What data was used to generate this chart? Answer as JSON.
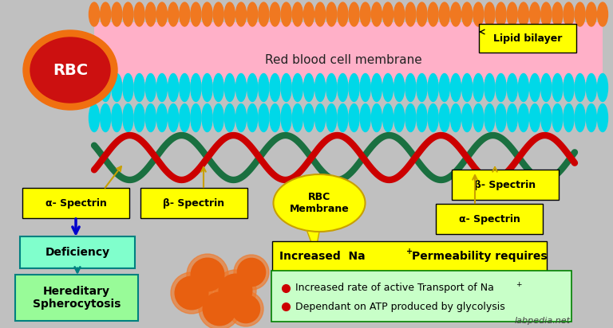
{
  "bg_color": "#c0c0c0",
  "fig_width": 7.68,
  "fig_height": 4.12,
  "orange_color": "#f07820",
  "pink_color": "#ffb0c8",
  "cyan_color": "#00d8e8",
  "rbc_outer_color": "#f07010",
  "rbc_inner_color": "#cc1010",
  "rbc_text": "RBC",
  "membrane_label": "Red blood cell membrane",
  "lipid_label": "Lipid bilayer",
  "alpha_spectrin_left": "α- Spectrin",
  "beta_spectrin_left": "β- Spectrin",
  "beta_spectrin_right": "β- Spectrin",
  "alpha_spectrin_right": "α- Spectrin",
  "rbc_membrane_label": "RBC\nMembrane",
  "deficiency_label": "Deficiency",
  "hereditary_label": "Hereditary\nSpherocytosis",
  "bullet1": "Increased rate of active Transport of Na",
  "bullet2": "Dependant on ATP produced by glycolysis",
  "na_text1": "Increased  Na",
  "na_text2": "Permeability requires",
  "labpedia": "labpedia.net",
  "yellow_color": "#ffff00",
  "green_box_color": "#98fb98",
  "cyan_box_color": "#80ffcc",
  "spectrin_green": "#1a7040",
  "spectrin_red": "#cc0000",
  "arrow_color_yellow": "#c8a000",
  "arrow_color_blue": "#0000cc",
  "arrow_color_teal": "#008080"
}
